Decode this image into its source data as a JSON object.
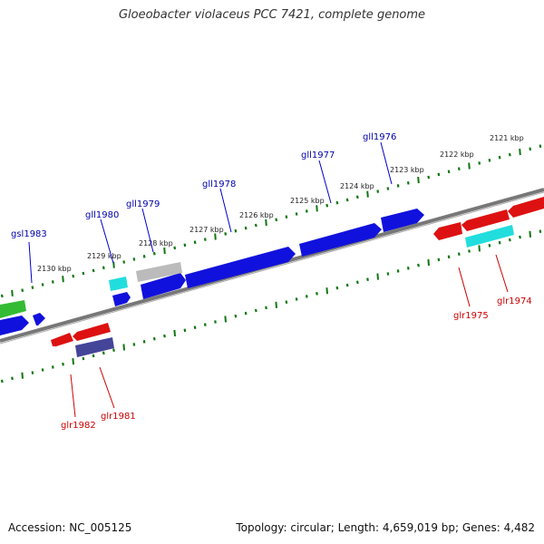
{
  "title": "Gloeobacter violaceus PCC 7421, complete genome",
  "footer": {
    "accession": "Accession: NC_005125",
    "summary": "Topology: circular; Length: 4,659,019 bp; Genes: 4,482"
  },
  "colors": {
    "forward_gene": "#0000ee",
    "reverse_gene": "#ee0000",
    "backbone": "#777777",
    "ticks": "#117711",
    "forward_label": "#0000aa",
    "reverse_label": "#cc0000"
  },
  "scale_labels": [
    "2130 kbp",
    "2129 kbp",
    "2128 kbp",
    "2127 kbp",
    "2126 kbp",
    "2125 kbp",
    "2124 kbp",
    "2123 kbp",
    "2122 kbp",
    "2121 kbp"
  ],
  "gene_labels": {
    "forward": [
      "gsl1983",
      "gll1980",
      "gll1979",
      "gll1978",
      "gll1977",
      "gll1976"
    ],
    "reverse": [
      "glr1982",
      "glr1981",
      "glr1975",
      "glr1974"
    ]
  }
}
